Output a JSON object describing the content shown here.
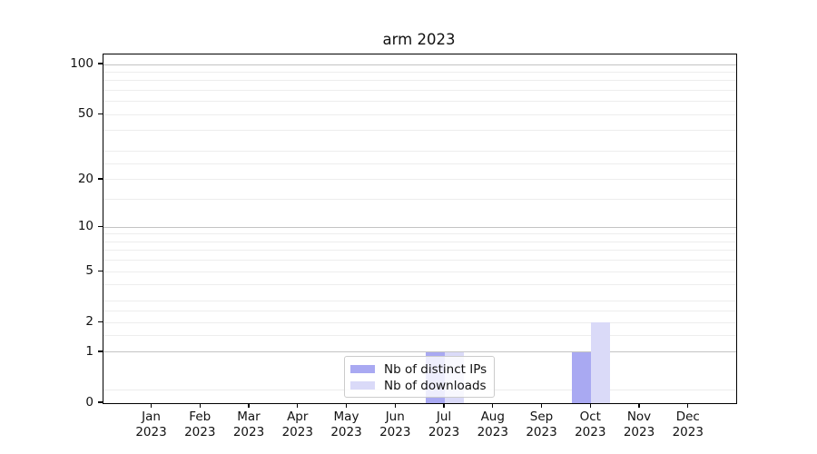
{
  "chart_data": {
    "type": "bar",
    "title": "arm 2023",
    "categories": [
      "Jan",
      "Feb",
      "Mar",
      "Apr",
      "May",
      "Jun",
      "Jul",
      "Aug",
      "Sep",
      "Oct",
      "Nov",
      "Dec"
    ],
    "year_label": "2023",
    "series": [
      {
        "name": "Nb of distinct IPs",
        "color": "#a9a9f2",
        "values": [
          0,
          0,
          0,
          0,
          0,
          0,
          1,
          0,
          0,
          1,
          0,
          0
        ]
      },
      {
        "name": "Nb of downloads",
        "color": "#dadaf8",
        "values": [
          0,
          0,
          0,
          0,
          0,
          0,
          1,
          0,
          0,
          2,
          0,
          0
        ]
      }
    ],
    "yscale": "log1p",
    "ylim": [
      0,
      115
    ],
    "yticks": [
      0,
      1,
      2,
      5,
      10,
      20,
      50,
      100
    ],
    "major_gridlines": [
      1,
      10,
      100
    ],
    "minor_gridlines": [
      0.2,
      1.5,
      2,
      2.5,
      3,
      4,
      5,
      6,
      7,
      8,
      9,
      15,
      20,
      25,
      30,
      40,
      50,
      60,
      70,
      80,
      90
    ],
    "grid": "on",
    "legend_position": "lower center",
    "colors": {
      "axis": "#000000",
      "major_grid": "#c3c3c3",
      "minor_grid": "#ededed",
      "bar_distinct_ips": "#a9a9f2",
      "bar_downloads": "#dadaf8"
    }
  }
}
